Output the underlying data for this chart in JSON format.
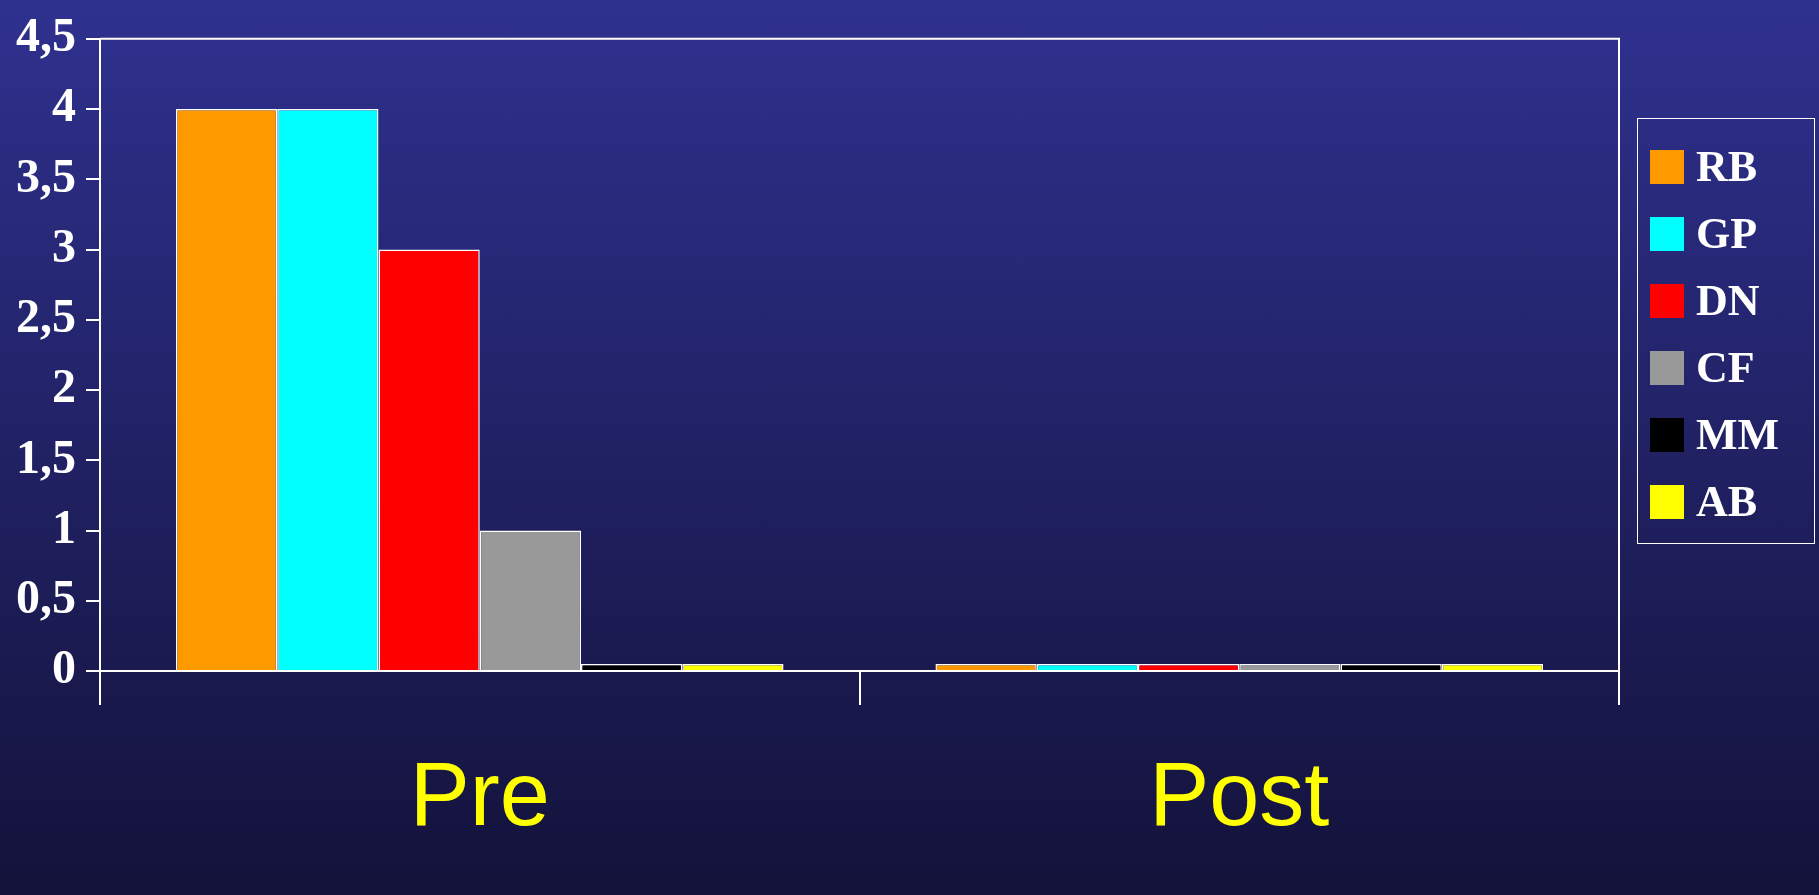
{
  "chart_data": {
    "type": "bar",
    "categories": [
      "Pre",
      "Post"
    ],
    "series": [
      {
        "name": "RB",
        "color": "#ff9900",
        "values": [
          4,
          0.05
        ]
      },
      {
        "name": "GP",
        "color": "#00ffff",
        "values": [
          4,
          0.05
        ]
      },
      {
        "name": "DN",
        "color": "#ff0000",
        "values": [
          3,
          0.05
        ]
      },
      {
        "name": "CF",
        "color": "#999999",
        "values": [
          1,
          0.05
        ]
      },
      {
        "name": "MM",
        "color": "#000000",
        "values": [
          0.05,
          0.05
        ]
      },
      {
        "name": "AB",
        "color": "#ffff00",
        "values": [
          0.05,
          0.05
        ]
      }
    ],
    "ylim": [
      0,
      4.5
    ],
    "yticks": [
      0,
      {
        "value": 0.5,
        "label": "0,5"
      },
      1,
      {
        "value": 1.5,
        "label": "1,5"
      },
      2,
      {
        "value": 2.5,
        "label": "2,5"
      },
      3,
      {
        "value": 3.5,
        "label": "3,5"
      },
      4,
      {
        "value": 4.5,
        "label": "4,5"
      }
    ],
    "grid": false,
    "legend": "right"
  }
}
